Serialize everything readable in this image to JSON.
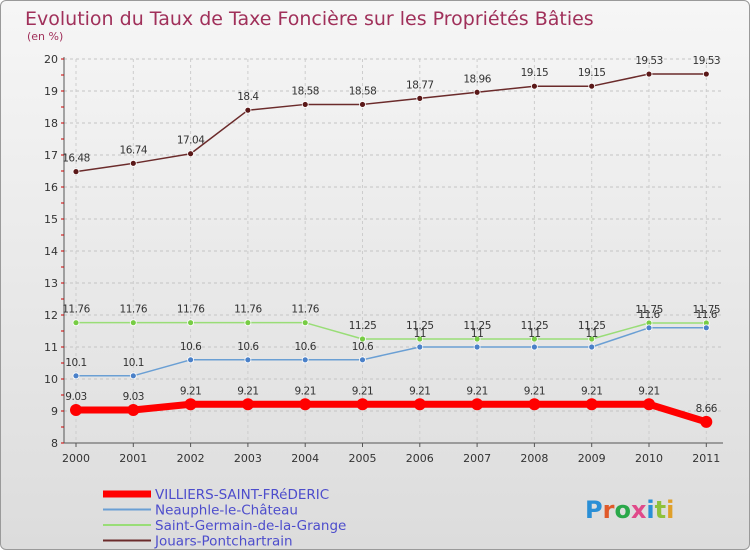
{
  "chart_data": {
    "type": "line",
    "title": "Evolution du Taux de Taxe Foncière sur les Propriétés Bâties",
    "subtitle": "(en %)",
    "xlabel": "",
    "ylabel": "",
    "x": [
      "2000",
      "2001",
      "2002",
      "2003",
      "2004",
      "2005",
      "2006",
      "2007",
      "2008",
      "2009",
      "2010",
      "2011"
    ],
    "yticks": [
      "8",
      "9",
      "10",
      "11",
      "12",
      "13",
      "14",
      "15",
      "16",
      "17",
      "18",
      "19",
      "20"
    ],
    "ylim": [
      8,
      20
    ],
    "grid": true,
    "legend_position": "bottom-left",
    "series": [
      {
        "name": "VILLIERS-SAINT-FRéDERIC",
        "color": "#ff0000",
        "values": [
          9.03,
          9.03,
          9.21,
          9.21,
          9.21,
          9.21,
          9.21,
          9.21,
          9.21,
          9.21,
          9.21,
          8.66
        ],
        "labels": [
          "9.03",
          "9.03",
          "9.21",
          "9.21",
          "9.21",
          "9.21",
          "9.21",
          "9.21",
          "9.21",
          "9.21",
          "9.21",
          "8.66"
        ]
      },
      {
        "name": "Neauphle-le-Château",
        "color": "#6a9fd4",
        "values": [
          10.1,
          10.1,
          10.6,
          10.6,
          10.6,
          10.6,
          11,
          11,
          11,
          11,
          11.6,
          11.6
        ],
        "labels": [
          "10.1",
          "10.1",
          "10.6",
          "10.6",
          "10.6",
          "10.6",
          "11",
          "11",
          "11",
          "11",
          "11.6",
          "11.6"
        ]
      },
      {
        "name": "Saint-Germain-de-la-Grange",
        "color": "#99dd77",
        "values": [
          11.76,
          11.76,
          11.76,
          11.76,
          11.76,
          11.25,
          11.25,
          11.25,
          11.25,
          11.25,
          11.75,
          11.75
        ],
        "labels": [
          "11.76",
          "11.76",
          "11.76",
          "11.76",
          "11.76",
          "11.25",
          "11.25",
          "11.25",
          "11.25",
          "11.25",
          "11.75",
          "11.75"
        ]
      },
      {
        "name": "Jouars-Pontchartrain",
        "color": "#6b2b2b",
        "values": [
          16.48,
          16.74,
          17.04,
          18.4,
          18.58,
          18.58,
          18.77,
          18.96,
          19.15,
          19.15,
          19.53,
          19.53
        ],
        "labels": [
          "16.48",
          "16.74",
          "17.04",
          "18.4",
          "18.58",
          "18.58",
          "18.77",
          "18.96",
          "19.15",
          "19.15",
          "19.53",
          "19.53"
        ]
      }
    ]
  },
  "colors": {
    "title": "#a0305a",
    "legend_text": "#4d4dcc",
    "axis": "#555555"
  },
  "logo": {
    "text": "Proxiti",
    "letter_colors": [
      "#2a8fd6",
      "#e05a2a",
      "#2aa84a",
      "#e04a8a",
      "#2a8fd6",
      "#8ec13b",
      "#e0a02a"
    ]
  }
}
